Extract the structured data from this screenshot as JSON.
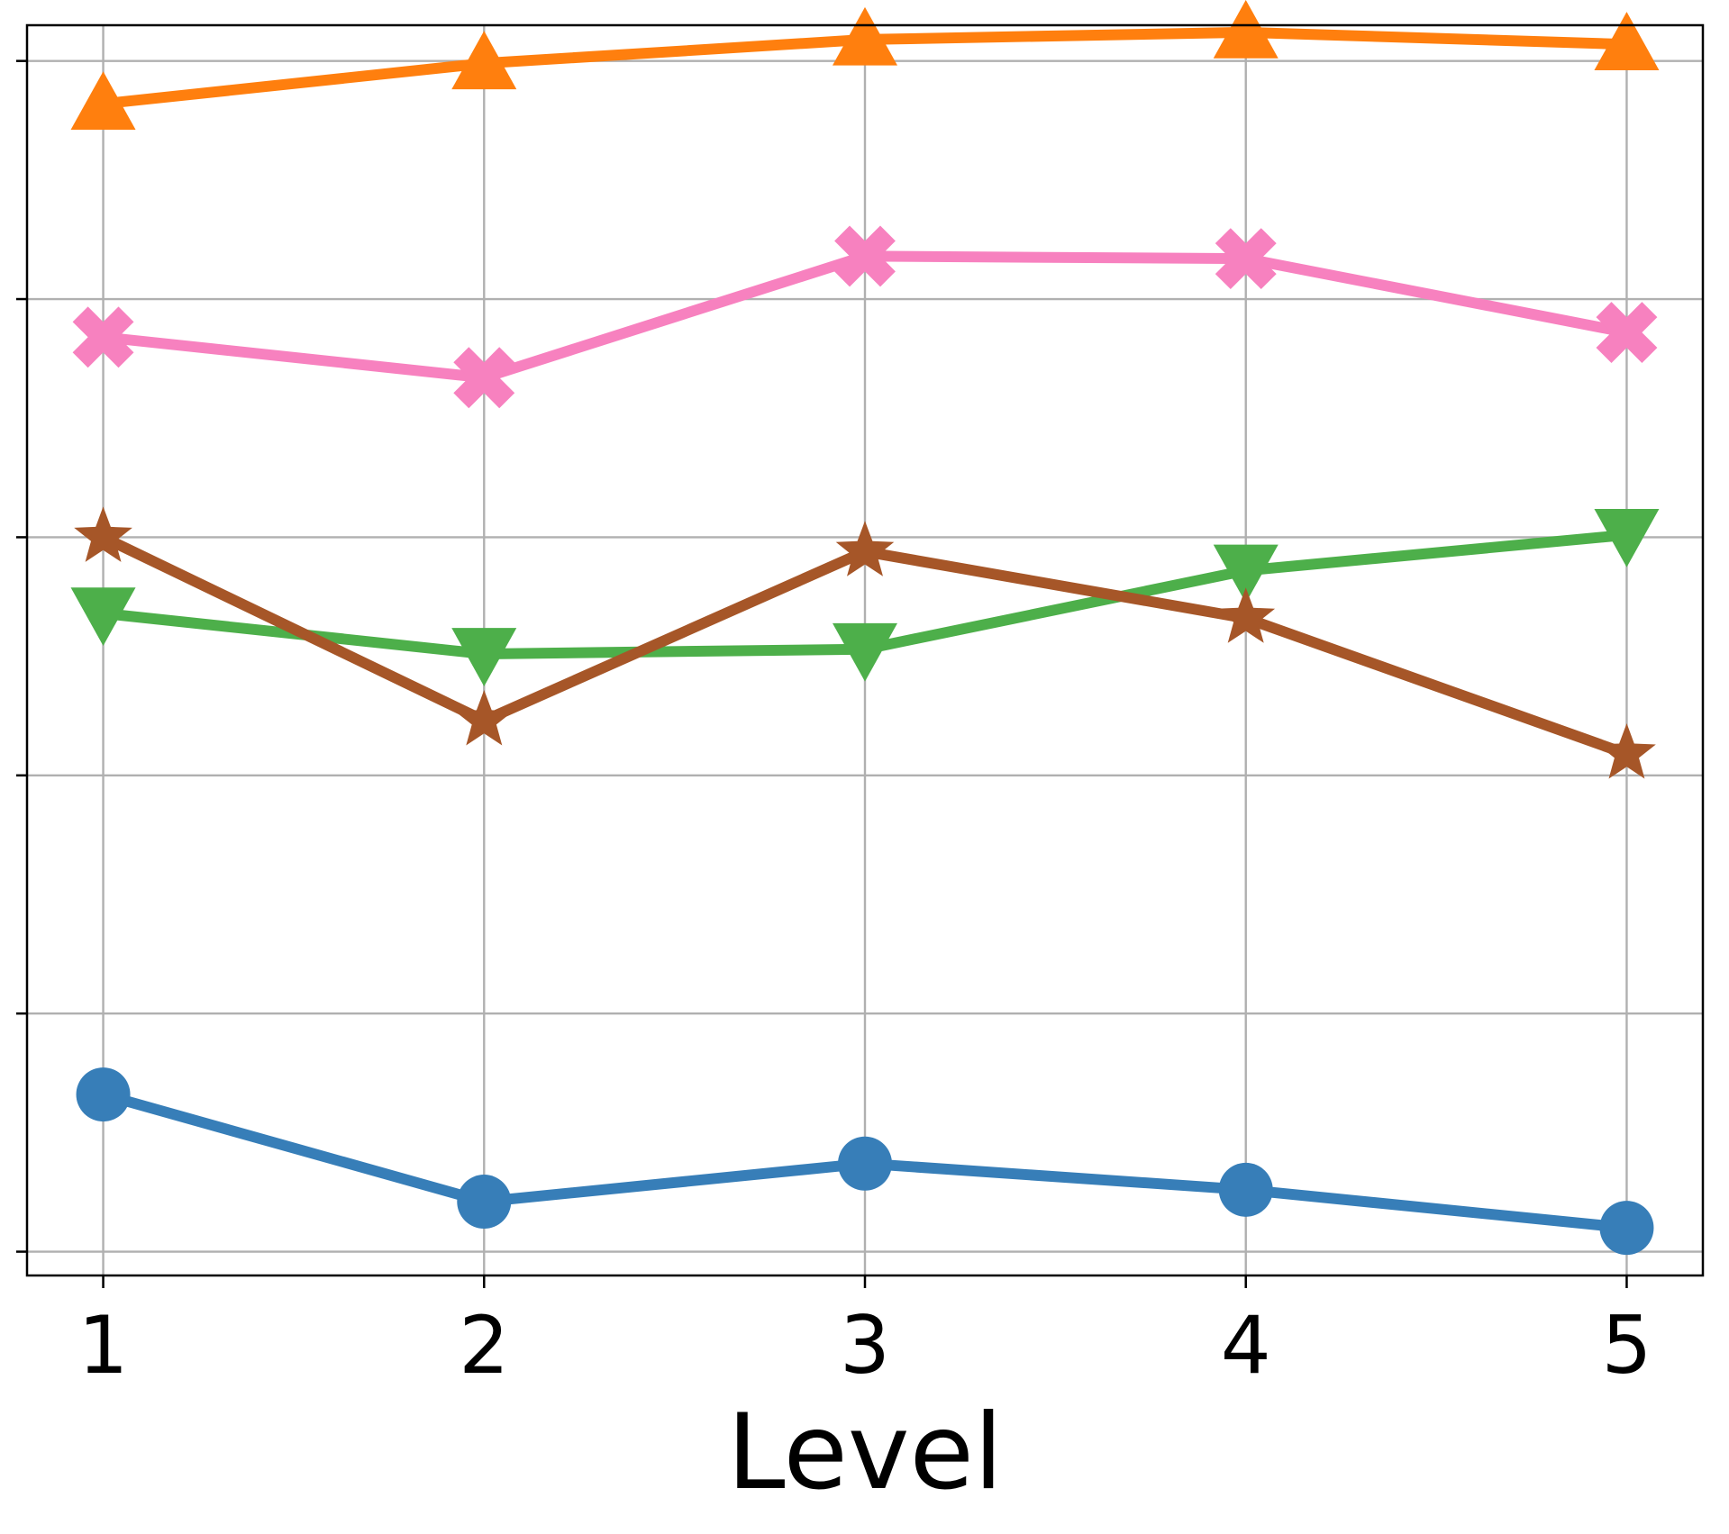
{
  "chart_data": {
    "type": "line",
    "x": [
      1,
      2,
      3,
      4,
      5
    ],
    "xlabel": "Level",
    "ylabel": "",
    "title": "",
    "grid": true,
    "legend": "none",
    "ylim": [
      0,
      5
    ],
    "series": [
      {
        "color": "#ff7f0e",
        "marker": "triangle-up",
        "values": [
          4.82,
          4.99,
          5.09,
          5.12,
          5.07
        ]
      },
      {
        "color": "#f781bf",
        "marker": "x-filled",
        "values": [
          3.84,
          3.67,
          4.18,
          4.17,
          3.86
        ]
      },
      {
        "color": "#4daf4a",
        "marker": "triangle-down",
        "values": [
          2.68,
          2.51,
          2.53,
          2.86,
          3.01
        ]
      },
      {
        "color": "#a65628",
        "marker": "star",
        "values": [
          3.0,
          2.23,
          2.94,
          2.66,
          2.09
        ]
      },
      {
        "color": "#377eb8",
        "marker": "circle",
        "values": [
          0.66,
          0.21,
          0.37,
          0.26,
          0.1
        ]
      }
    ]
  }
}
